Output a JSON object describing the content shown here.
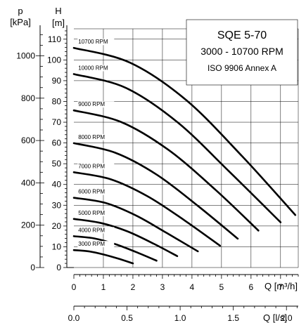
{
  "chart_data": {
    "type": "line",
    "title": "SQE 5-70",
    "subtitle": "3000 - 10700 RPM",
    "standard": "ISO 9906 Annex A",
    "y_pressure_label": "p",
    "y_pressure_unit": "[kPa]",
    "y_head_label": "H",
    "y_head_unit": "[m]",
    "x_flow_label": "Q [m³/h]",
    "x_flow_ls_label": "Q [l/s]",
    "xlim": [
      0,
      7.6
    ],
    "ylim": [
      0,
      115
    ],
    "grid": true,
    "head_ticks": [
      "0",
      "10",
      "20",
      "30",
      "40",
      "50",
      "60",
      "70",
      "80",
      "90",
      "100",
      "110"
    ],
    "pressure_ticks": [
      "0",
      "200",
      "400",
      "600",
      "800",
      "1000"
    ],
    "flow_ticks": [
      "0",
      "1",
      "2",
      "3",
      "4",
      "5",
      "6",
      "7"
    ],
    "flow_ls_ticks": [
      "0.0",
      "0.5",
      "1.0",
      "1.5",
      "2.0"
    ],
    "series": [
      {
        "name": "3000 RPM",
        "x": [
          0,
          0.5,
          1.0,
          1.5,
          2.0
        ],
        "y": [
          8.4,
          7.8,
          6.3,
          4.3,
          2.0
        ]
      },
      {
        "name": "4000 RPM",
        "x": [
          0,
          0.7,
          1.4,
          2.1,
          2.8
        ],
        "y": [
          15.1,
          14.0,
          11.3,
          7.5,
          3.3
        ]
      },
      {
        "name": "5000 RPM",
        "x": [
          0,
          0.9,
          1.8,
          2.7,
          3.5
        ],
        "y": [
          23.4,
          21.5,
          17.5,
          11.5,
          5.5
        ]
      },
      {
        "name": "6000 RPM",
        "x": [
          0,
          1.05,
          2.1,
          3.15,
          4.2
        ],
        "y": [
          33.6,
          31.2,
          25.1,
          16.6,
          7.8
        ]
      },
      {
        "name": "7000 RPM",
        "x": [
          0,
          1.25,
          2.5,
          3.75,
          4.95
        ],
        "y": [
          45.9,
          42.5,
          34.3,
          22.7,
          10.5
        ]
      },
      {
        "name": "8000 RPM",
        "x": [
          0,
          1.4,
          2.8,
          4.2,
          5.55
        ],
        "y": [
          59.9,
          55.3,
          44.8,
          29.7,
          13.9
        ]
      },
      {
        "name": "9000 RPM",
        "x": [
          0,
          1.6,
          3.2,
          4.8,
          6.25
        ],
        "y": [
          75.7,
          70.1,
          56.7,
          37.4,
          17.8
        ]
      },
      {
        "name": "10000 RPM",
        "x": [
          0,
          1.75,
          3.5,
          5.25,
          7.0
        ],
        "y": [
          93.2,
          86.6,
          70.1,
          46.4,
          21.8
        ]
      },
      {
        "name": "10700 RPM",
        "x": [
          0,
          1.9,
          3.8,
          5.7,
          7.5
        ],
        "y": [
          105.8,
          98.7,
          80.7,
          53.6,
          25.3
        ]
      }
    ]
  }
}
